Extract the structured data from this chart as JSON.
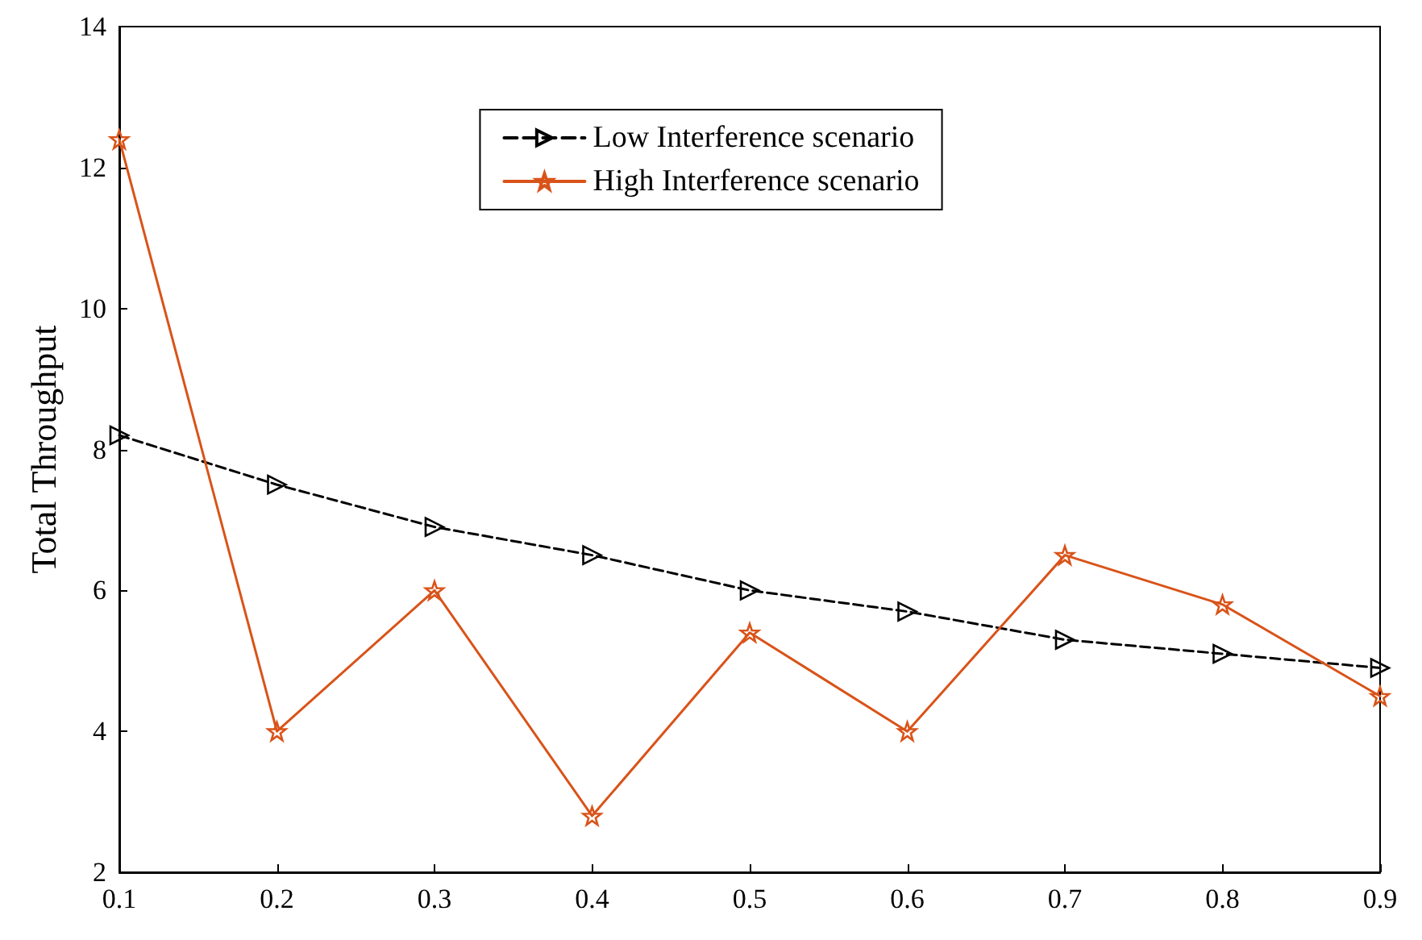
{
  "chart_data": {
    "type": "line",
    "ylabel": "Total Throughput",
    "x": [
      0.1,
      0.2,
      0.3,
      0.4,
      0.5,
      0.6,
      0.7,
      0.8,
      0.9
    ],
    "series": [
      {
        "name": "Low Interference scenario",
        "color": "#000000",
        "marker": "triangle",
        "line_style": "dashed",
        "values": [
          8.2,
          7.5,
          6.9,
          6.5,
          6.0,
          5.7,
          5.3,
          5.1,
          4.9
        ]
      },
      {
        "name": "High Interference scenario",
        "color": "#d95319",
        "marker": "star",
        "line_style": "solid",
        "values": [
          12.4,
          4.0,
          6.0,
          2.8,
          5.4,
          4.0,
          6.5,
          5.8,
          4.5
        ]
      }
    ],
    "xlim": [
      0.1,
      0.9
    ],
    "xticks": [
      0.1,
      0.2,
      0.3,
      0.4,
      0.5,
      0.6,
      0.7,
      0.8,
      0.9
    ],
    "ylim": [
      2,
      14
    ],
    "yticks": [
      2,
      4,
      6,
      8,
      10,
      12,
      14
    ],
    "grid": false,
    "legend": "top"
  }
}
